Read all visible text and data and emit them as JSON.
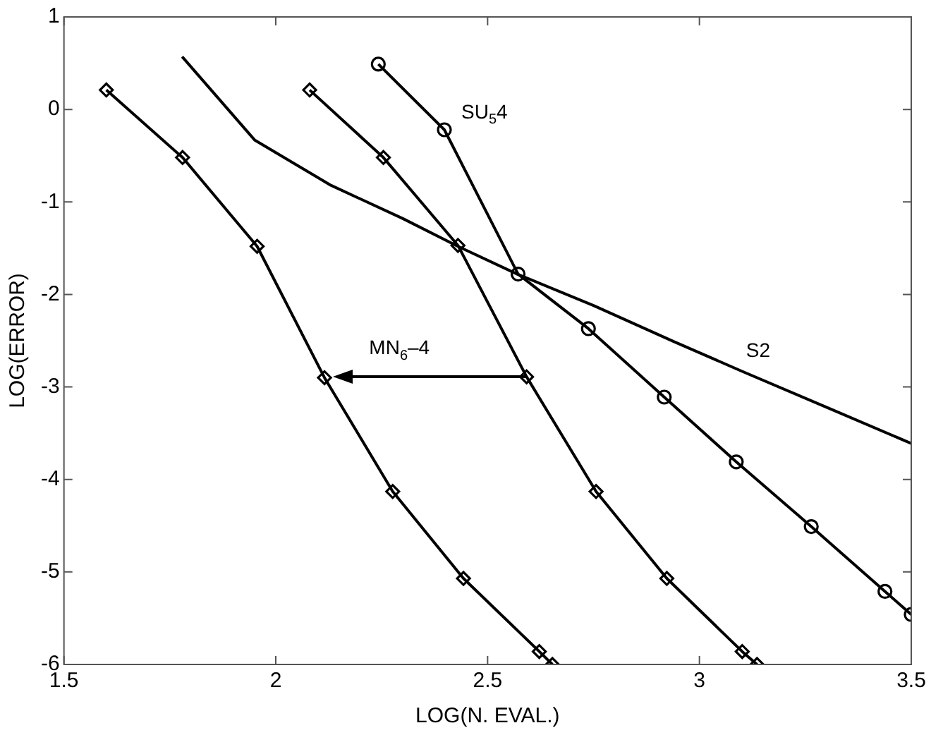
{
  "chart_data": {
    "type": "line",
    "xlabel": "LOG(N. EVAL.)",
    "ylabel": "LOG(ERROR)",
    "xlim": [
      1.5,
      3.5
    ],
    "xticks": [
      1.5,
      2,
      2.5,
      3,
      3.5
    ],
    "ylim": [
      -6,
      1
    ],
    "yticks": [
      -6,
      -5,
      -4,
      -3,
      -2,
      -1,
      0,
      1
    ],
    "grid": false,
    "legend": false,
    "series": [
      {
        "color": "#000000",
        "marker": "diamond",
        "x": [
          1.6,
          1.78,
          1.956,
          2.115,
          2.276,
          2.443,
          2.622,
          2.653
        ],
        "values": [
          0.21,
          -0.52,
          -1.48,
          -2.9,
          -4.13,
          -5.07,
          -5.86,
          -6
        ]
      },
      {
        "color": "#000000",
        "marker": "diamond",
        "x": [
          2.08,
          2.254,
          2.43,
          2.592,
          2.756,
          2.923,
          3.101,
          3.136
        ],
        "values": [
          0.21,
          -0.52,
          -1.47,
          -2.89,
          -4.13,
          -5.07,
          -5.86,
          -6
        ]
      },
      {
        "name": "SU$_{5}$4",
        "color": "#000000",
        "marker": "circle",
        "x": [
          2.242,
          2.398,
          2.572,
          2.738,
          2.917,
          3.087,
          3.264,
          3.438,
          3.5
        ],
        "values": [
          0.49,
          -0.22,
          -1.78,
          -2.37,
          -3.11,
          -3.81,
          -4.51,
          -5.21,
          -5.46
        ]
      },
      {
        "name": "S2",
        "color": "#000000",
        "marker": "none",
        "x": [
          1.779,
          1.95,
          2.13,
          2.3,
          2.43,
          2.57,
          2.75,
          2.94,
          3.1,
          3.3,
          3.5
        ],
        "values": [
          0.57,
          -0.33,
          -0.82,
          -1.18,
          -1.48,
          -1.78,
          -2.12,
          -2.51,
          -2.83,
          -3.22,
          -3.61
        ]
      }
    ],
    "annotations": [
      "MN$_{6}$–4"
    ]
  }
}
